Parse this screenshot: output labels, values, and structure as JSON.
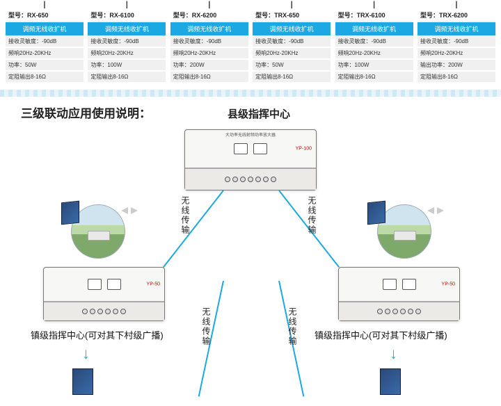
{
  "products": [
    {
      "model": "型号：RX-650",
      "type": "调频无线收扩机",
      "specs": [
        "接收灵敏度：-90dB",
        "频响20Hz-20KHz",
        "功率：50W",
        "定阻输出8-16Ω"
      ]
    },
    {
      "model": "型号：RX-6100",
      "type": "调频无线收扩机",
      "specs": [
        "接收灵敏度：-90dB",
        "频响20Hz-20KHz",
        "功率：100W",
        "定阻输出8-16Ω"
      ]
    },
    {
      "model": "型号：RX-6200",
      "type": "调频无线收扩机",
      "specs": [
        "接收灵敏度：-90dB",
        "频响20Hz-20KHz",
        "功率：200W",
        "定阻输出8-16Ω"
      ]
    },
    {
      "model": "型号：TRX-650",
      "type": "调频无线收扩机",
      "specs": [
        "接收灵敏度：-90dB",
        "频响20Hz-20KHz",
        "功率：50W",
        "定阻输出8-16Ω"
      ]
    },
    {
      "model": "型号：TRX-6100",
      "type": "调频无线收扩机",
      "specs": [
        "接收灵敏度：-90dB",
        "频响20Hz-20KHz",
        "功率：100W",
        "定阻输出8-16Ω"
      ]
    },
    {
      "model": "型号：TRX-6200",
      "type": "调频无线收扩机",
      "specs": [
        "接收灵敏度：-90dB",
        "频响20Hz-20KHz",
        "输出功率：200W",
        "定阻输出8-16Ω"
      ]
    }
  ],
  "section_title": "三级联动应用使用说明：",
  "county_center": "县级指挥中心",
  "wire_label": "无线传输",
  "town_label": "镇级指挥中心(可对其下村级广播)",
  "rack_main_text": "大功率无线射频功率放大器",
  "rack_main_model": "YP-100",
  "rack_sub_model": "YP-50",
  "colors": {
    "accent": "#1ca9e3",
    "spec_bg": "#f0f0f0"
  }
}
